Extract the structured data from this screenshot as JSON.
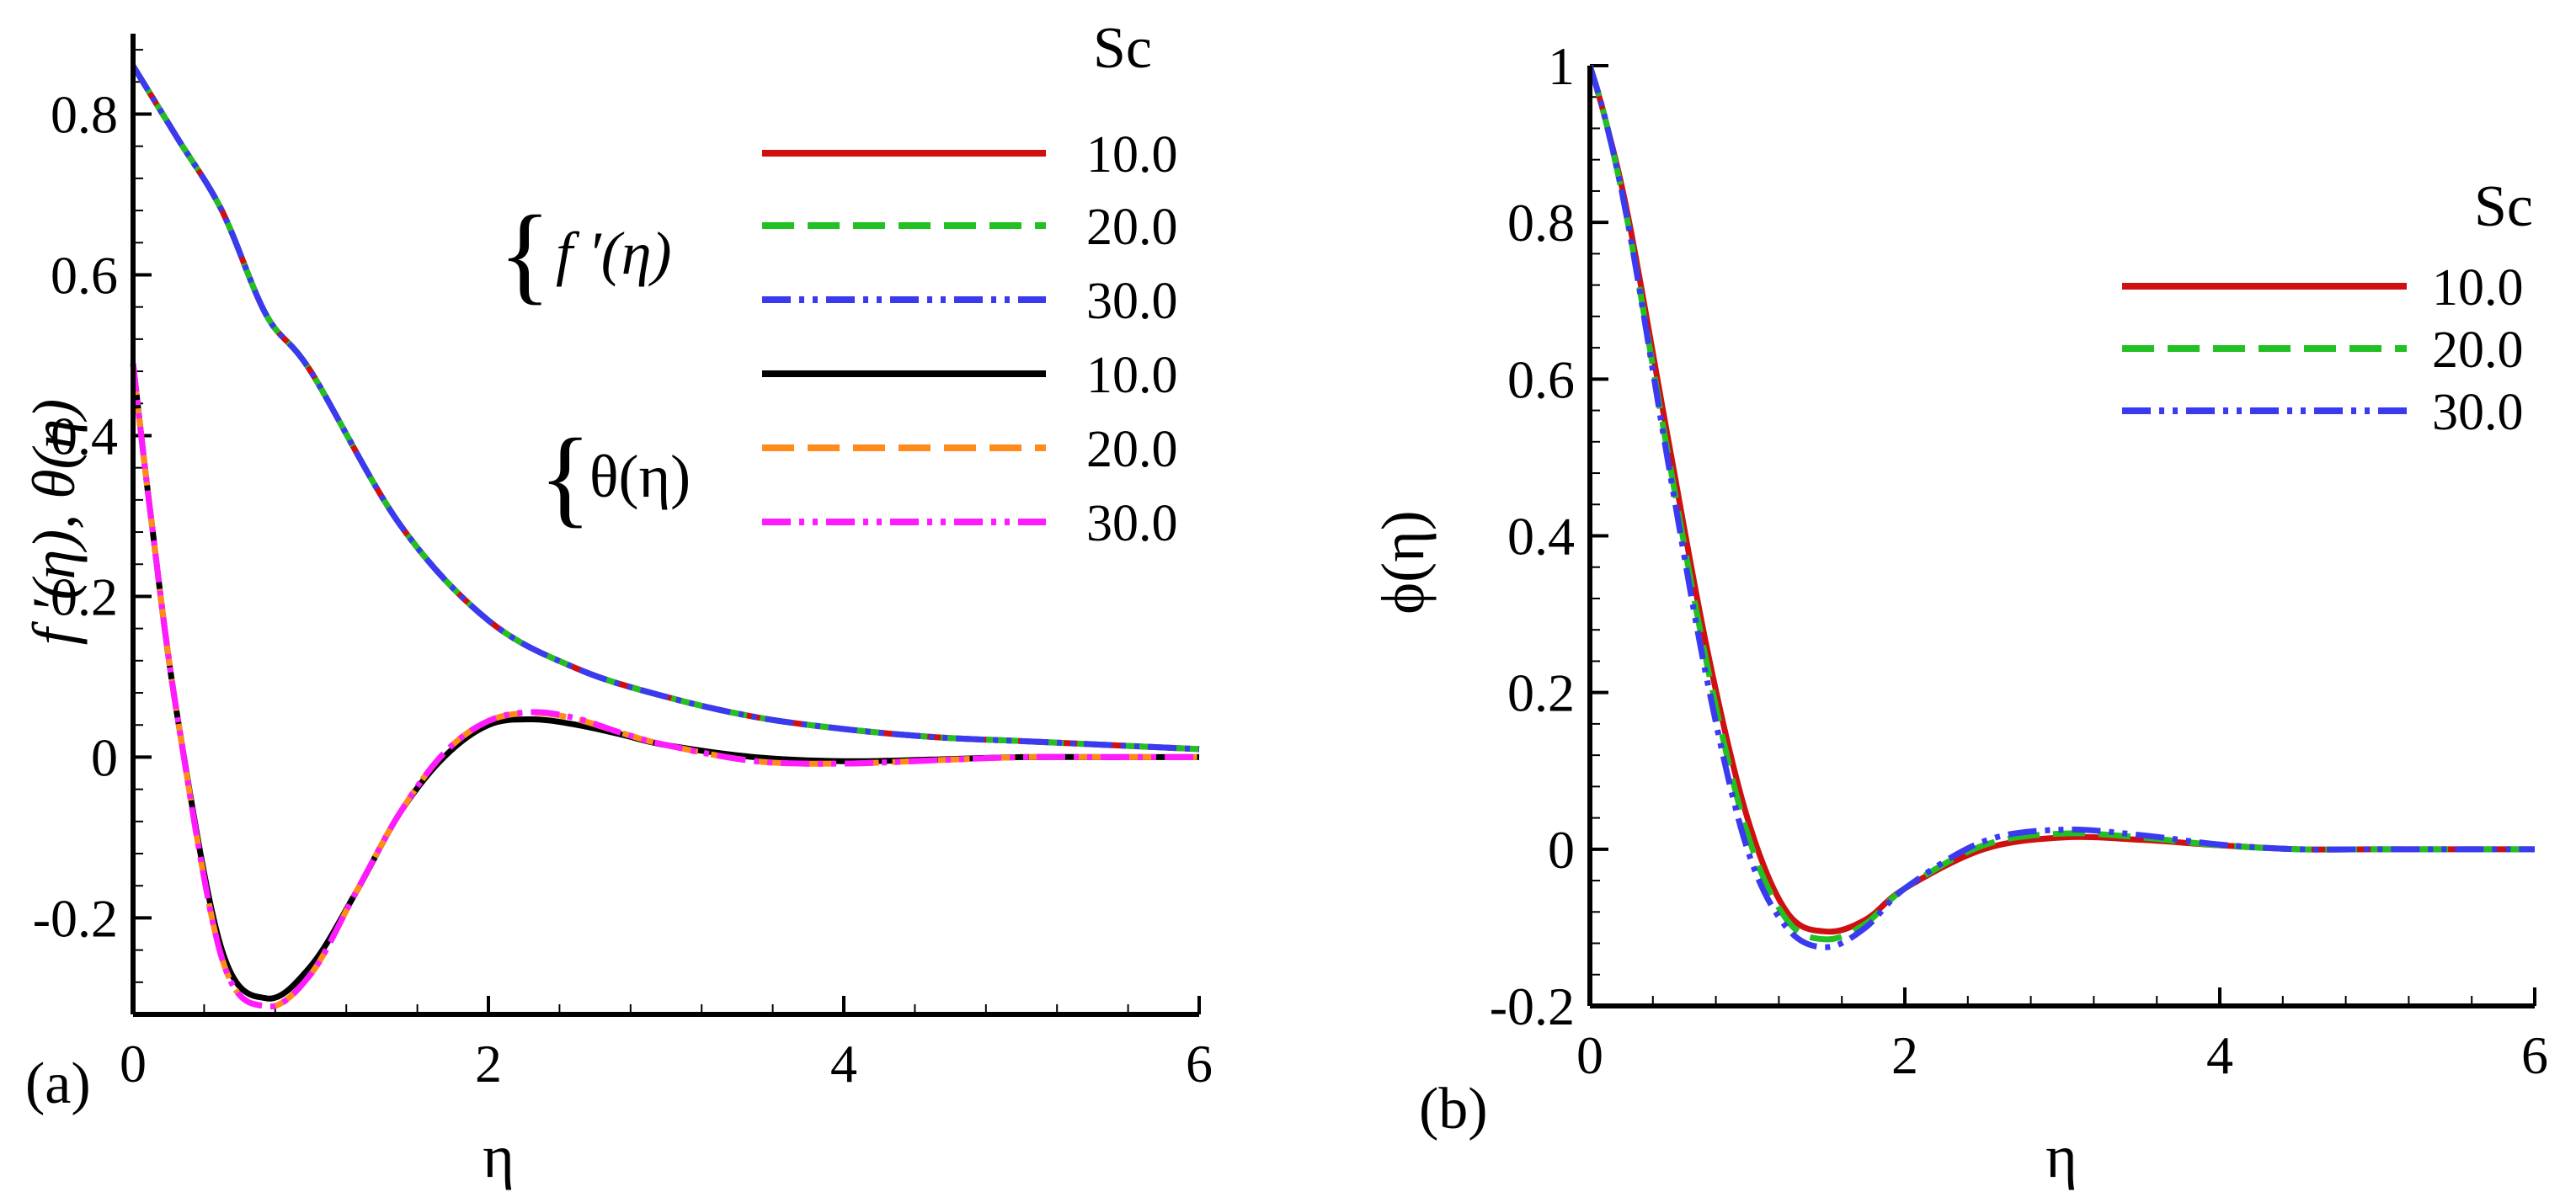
{
  "chart_data": [
    {
      "type": "line",
      "panel_label": "(a)",
      "xlabel": "η",
      "ylabel": "f ′(η), θ(η)",
      "xlim": [
        0,
        6
      ],
      "ylim": [
        -0.32,
        0.9
      ],
      "x_ticks": [
        "0",
        "2",
        "4",
        "6"
      ],
      "y_ticks": [
        "-0.2",
        "0",
        "0.2",
        "0.4",
        "0.6",
        "0.8"
      ],
      "x_tick_values": [
        0,
        2,
        4,
        6
      ],
      "y_tick_values": [
        -0.2,
        0,
        0.2,
        0.4,
        0.6,
        0.8
      ],
      "legend": {
        "title": "Sc",
        "groups": [
          {
            "label": "f ′(η)",
            "entries": [
              {
                "value": "10.0",
                "color": "#d01010",
                "dash": "solid"
              },
              {
                "value": "20.0",
                "color": "#22c022",
                "dash": "dash"
              },
              {
                "value": "30.0",
                "color": "#3a3af0",
                "dash": "dashdotdot"
              }
            ]
          },
          {
            "label": "θ(η)",
            "entries": [
              {
                "value": "10.0",
                "color": "#000000",
                "dash": "solid"
              },
              {
                "value": "20.0",
                "color": "#ff8c1a",
                "dash": "dash"
              },
              {
                "value": "30.0",
                "color": "#ff1aff",
                "dash": "dashdotdot"
              }
            ]
          }
        ]
      },
      "series": [
        {
          "name": "f′(η) Sc=10.0",
          "color": "#d01010",
          "dash": "solid",
          "x": [
            0,
            0.25,
            0.5,
            0.75,
            1,
            1.5,
            2,
            2.5,
            3,
            3.5,
            4,
            4.5,
            5,
            5.5,
            6
          ],
          "y": [
            0.86,
            0.77,
            0.68,
            0.55,
            0.48,
            0.29,
            0.17,
            0.11,
            0.075,
            0.05,
            0.035,
            0.025,
            0.02,
            0.015,
            0.01
          ]
        },
        {
          "name": "f′(η) Sc=20.0",
          "color": "#22c022",
          "dash": "dash",
          "x": [
            0,
            0.25,
            0.5,
            0.75,
            1,
            1.5,
            2,
            2.5,
            3,
            3.5,
            4,
            4.5,
            5,
            5.5,
            6
          ],
          "y": [
            0.86,
            0.77,
            0.68,
            0.55,
            0.48,
            0.29,
            0.17,
            0.11,
            0.075,
            0.05,
            0.035,
            0.025,
            0.02,
            0.015,
            0.01
          ]
        },
        {
          "name": "f′(η) Sc=30.0",
          "color": "#3a3af0",
          "dash": "dashdotdot",
          "x": [
            0,
            0.25,
            0.5,
            0.75,
            1,
            1.5,
            2,
            2.5,
            3,
            3.5,
            4,
            4.5,
            5,
            5.5,
            6
          ],
          "y": [
            0.86,
            0.77,
            0.68,
            0.55,
            0.48,
            0.29,
            0.17,
            0.11,
            0.075,
            0.05,
            0.035,
            0.025,
            0.02,
            0.015,
            0.01
          ]
        },
        {
          "name": "θ(η) Sc=10.0",
          "color": "#000000",
          "dash": "solid",
          "x": [
            0,
            0.1,
            0.25,
            0.5,
            0.75,
            1,
            1.25,
            1.5,
            1.75,
            2,
            2.25,
            2.5,
            2.75,
            3,
            3.5,
            4,
            4.5,
            5,
            5.5,
            6
          ],
          "y": [
            0.49,
            0.3,
            0.05,
            -0.24,
            -0.3,
            -0.26,
            -0.17,
            -0.07,
            0.0,
            0.04,
            0.047,
            0.04,
            0.028,
            0.015,
            0.0,
            -0.005,
            -0.003,
            0.0,
            0.0,
            0.0
          ]
        },
        {
          "name": "θ(η) Sc=20.0",
          "color": "#ff8c1a",
          "dash": "dash",
          "x": [
            0,
            0.1,
            0.25,
            0.5,
            0.75,
            1,
            1.25,
            1.5,
            1.75,
            2,
            2.25,
            2.5,
            2.75,
            3,
            3.5,
            4,
            4.5,
            5,
            5.5,
            6
          ],
          "y": [
            0.49,
            0.3,
            0.05,
            -0.25,
            -0.31,
            -0.27,
            -0.17,
            -0.07,
            0.005,
            0.045,
            0.055,
            0.047,
            0.03,
            0.015,
            -0.005,
            -0.008,
            -0.004,
            0.0,
            0.0,
            0.0
          ]
        },
        {
          "name": "θ(η) Sc=30.0",
          "color": "#ff1aff",
          "dash": "dashdotdot",
          "x": [
            0,
            0.1,
            0.25,
            0.5,
            0.75,
            1,
            1.25,
            1.5,
            1.75,
            2,
            2.25,
            2.5,
            2.75,
            3,
            3.5,
            4,
            4.5,
            5,
            5.5,
            6
          ],
          "y": [
            0.49,
            0.3,
            0.05,
            -0.25,
            -0.31,
            -0.27,
            -0.17,
            -0.07,
            0.005,
            0.045,
            0.056,
            0.048,
            0.03,
            0.015,
            -0.005,
            -0.008,
            -0.004,
            0.0,
            0.0,
            0.0
          ]
        }
      ]
    },
    {
      "type": "line",
      "panel_label": "(b)",
      "xlabel": "η",
      "ylabel": "ϕ(η)",
      "xlim": [
        0,
        6
      ],
      "ylim": [
        -0.2,
        1.0
      ],
      "x_ticks": [
        "0",
        "2",
        "4",
        "6"
      ],
      "y_ticks": [
        "-0.2",
        "0",
        "0.2",
        "0.4",
        "0.6",
        "0.8",
        "1"
      ],
      "x_tick_values": [
        0,
        2,
        4,
        6
      ],
      "y_tick_values": [
        -0.2,
        0,
        0.2,
        0.4,
        0.6,
        0.8,
        1.0
      ],
      "legend": {
        "title": "Sc",
        "entries": [
          {
            "value": "10.0",
            "color": "#d01010",
            "dash": "solid"
          },
          {
            "value": "20.0",
            "color": "#22c022",
            "dash": "dash"
          },
          {
            "value": "30.0",
            "color": "#3a3af0",
            "dash": "dashdotdot"
          }
        ]
      },
      "series": [
        {
          "name": "ϕ(η) Sc=10.0",
          "color": "#d01010",
          "dash": "solid",
          "x": [
            0,
            0.1,
            0.25,
            0.5,
            0.75,
            1,
            1.25,
            1.5,
            1.75,
            2,
            2.5,
            3,
            3.5,
            4,
            4.5,
            5,
            5.5,
            6
          ],
          "y": [
            1.0,
            0.93,
            0.8,
            0.52,
            0.25,
            0.04,
            -0.08,
            -0.105,
            -0.09,
            -0.05,
            0.0,
            0.015,
            0.012,
            0.005,
            0.0,
            0.0,
            0.0,
            0.0
          ]
        },
        {
          "name": "ϕ(η) Sc=20.0",
          "color": "#22c022",
          "dash": "dash",
          "x": [
            0,
            0.1,
            0.25,
            0.5,
            0.75,
            1,
            1.25,
            1.5,
            1.75,
            2,
            2.5,
            3,
            3.5,
            4,
            4.5,
            5,
            5.5,
            6
          ],
          "y": [
            1.0,
            0.93,
            0.79,
            0.5,
            0.23,
            0.02,
            -0.09,
            -0.115,
            -0.095,
            -0.05,
            0.005,
            0.02,
            0.015,
            0.005,
            0.0,
            0.0,
            0.0,
            0.0
          ]
        },
        {
          "name": "ϕ(η) Sc=30.0",
          "color": "#3a3af0",
          "dash": "dashdotdot",
          "x": [
            0,
            0.1,
            0.25,
            0.5,
            0.75,
            1,
            1.25,
            1.5,
            1.75,
            2,
            2.5,
            3,
            3.5,
            4,
            4.5,
            5,
            5.5,
            6
          ],
          "y": [
            1.0,
            0.93,
            0.79,
            0.49,
            0.21,
            0.0,
            -0.1,
            -0.125,
            -0.1,
            -0.05,
            0.01,
            0.025,
            0.018,
            0.006,
            0.0,
            0.0,
            0.0,
            0.0
          ]
        }
      ]
    }
  ]
}
